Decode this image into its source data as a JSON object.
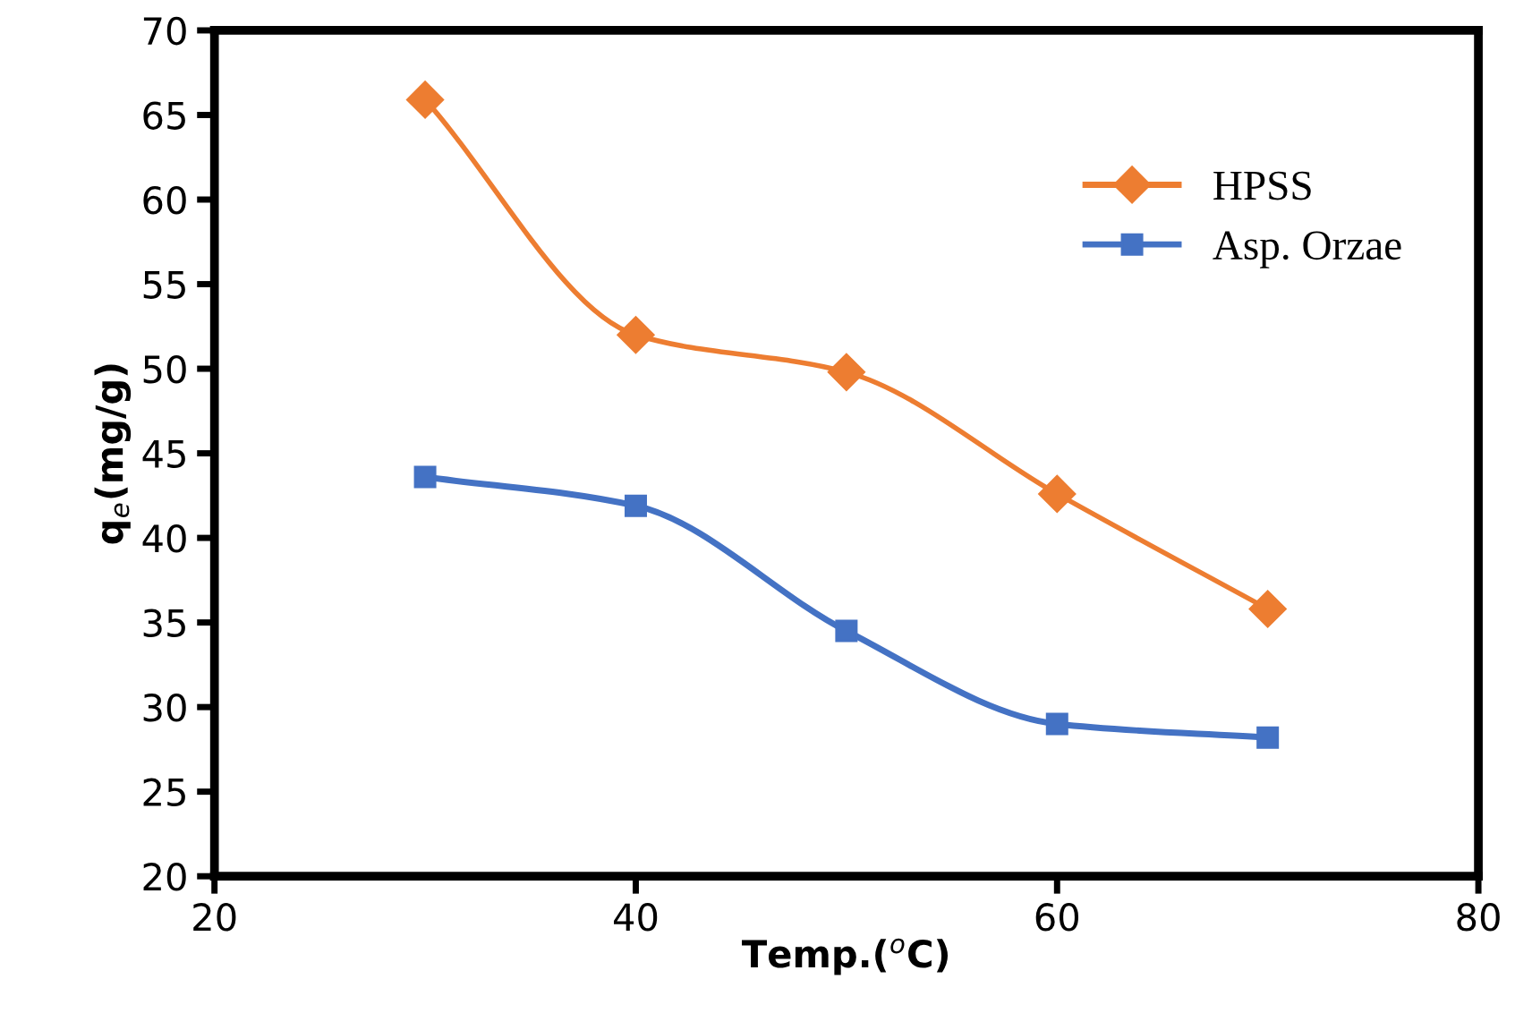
{
  "chart_data": {
    "type": "line",
    "xlabel": "Temp.($^{o}$C)",
    "ylabel": "q$_{e}$(mg/g)",
    "xlim": [
      20,
      80
    ],
    "xticks": [
      20,
      40,
      60,
      80
    ],
    "ylim": [
      20,
      70
    ],
    "yticks": [
      20,
      25,
      30,
      35,
      40,
      45,
      50,
      55,
      60,
      65,
      70
    ],
    "grid": false,
    "legend": "top right",
    "line_style": "solid",
    "x": [
      30,
      40,
      50,
      60,
      70
    ],
    "series": [
      {
        "name": "HPSS",
        "color": "#ed7d31",
        "marker": "diamond",
        "values": [
          65.9,
          52.0,
          49.8,
          42.6,
          35.8
        ]
      },
      {
        "name": "Asp. Orzae",
        "color": "#4472c4",
        "marker": "square",
        "values": [
          43.6,
          41.9,
          34.5,
          29.0,
          28.2
        ]
      }
    ]
  }
}
